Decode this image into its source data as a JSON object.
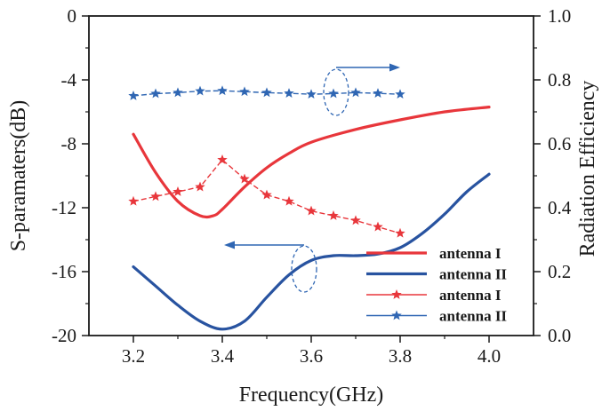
{
  "chart_data": {
    "type": "line",
    "xlabel": "Frequency(GHz)",
    "ylabel_left": "S-paramaters(dB)",
    "ylabel_right": "Radiation Efficiency",
    "xlim": [
      3.1,
      4.1
    ],
    "ylim_left": [
      -20,
      0
    ],
    "ylim_right": [
      0.0,
      1.0
    ],
    "x_ticks": [
      3.2,
      3.4,
      3.6,
      3.8,
      4.0
    ],
    "x_tick_labels": [
      "3.2",
      "3.4",
      "3.6",
      "3.8",
      "4.0"
    ],
    "y_left_ticks": [
      0,
      -4,
      -8,
      -12,
      -16,
      -20
    ],
    "y_left_tick_labels": [
      "0",
      "-4",
      "-8",
      "-12",
      "-16",
      "-20"
    ],
    "y_right_ticks": [
      1.0,
      0.8,
      0.6,
      0.4,
      0.2,
      0.0
    ],
    "y_right_tick_labels": [
      "1.0",
      "0.8",
      "0.6",
      "0.4",
      "0.2",
      "0.0"
    ],
    "grid": false,
    "legend_position": "bottom-right",
    "series": [
      {
        "name": "antenna I",
        "axis": "left",
        "color": "#e8363b",
        "marker": "none",
        "x": [
          3.2,
          3.25,
          3.3,
          3.35,
          3.38,
          3.4,
          3.45,
          3.5,
          3.55,
          3.6,
          3.7,
          3.8,
          3.9,
          4.0
        ],
        "values": [
          -7.4,
          -9.8,
          -11.6,
          -12.5,
          -12.5,
          -12.1,
          -10.7,
          -9.5,
          -8.6,
          -7.9,
          -7.1,
          -6.5,
          -6.0,
          -5.7
        ]
      },
      {
        "name": "antenna II",
        "axis": "left",
        "color": "#2853a0",
        "marker": "none",
        "x": [
          3.2,
          3.25,
          3.3,
          3.35,
          3.4,
          3.45,
          3.5,
          3.55,
          3.6,
          3.65,
          3.7,
          3.75,
          3.8,
          3.85,
          3.9,
          3.95,
          4.0
        ],
        "values": [
          -15.7,
          -16.9,
          -18.1,
          -19.1,
          -19.6,
          -19.1,
          -17.6,
          -16.2,
          -15.3,
          -15.0,
          -15.0,
          -14.9,
          -14.5,
          -13.6,
          -12.4,
          -11.0,
          -9.9
        ]
      },
      {
        "name": "antenna I",
        "axis": "right",
        "color": "#e8363b",
        "marker": "star",
        "x": [
          3.2,
          3.25,
          3.3,
          3.35,
          3.4,
          3.45,
          3.5,
          3.55,
          3.6,
          3.65,
          3.7,
          3.75,
          3.8
        ],
        "values": [
          0.42,
          0.435,
          0.45,
          0.465,
          0.55,
          0.49,
          0.44,
          0.42,
          0.39,
          0.375,
          0.36,
          0.34,
          0.32
        ]
      },
      {
        "name": "antenna II",
        "axis": "right",
        "color": "#2f66b3",
        "marker": "star",
        "x": [
          3.2,
          3.25,
          3.3,
          3.35,
          3.4,
          3.45,
          3.5,
          3.55,
          3.6,
          3.65,
          3.7,
          3.75,
          3.8
        ],
        "values": [
          0.75,
          0.757,
          0.76,
          0.765,
          0.766,
          0.763,
          0.76,
          0.758,
          0.755,
          0.757,
          0.76,
          0.758,
          0.755
        ]
      }
    ]
  }
}
